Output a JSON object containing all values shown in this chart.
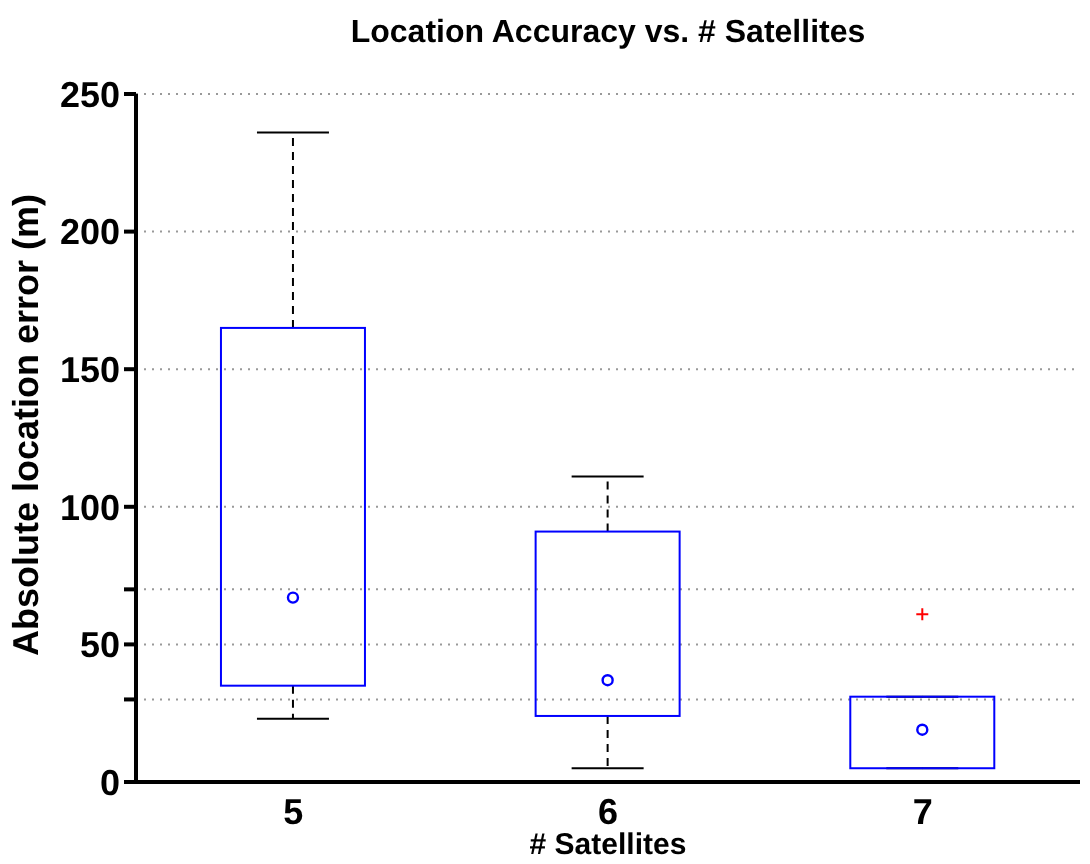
{
  "chart_data": {
    "type": "box",
    "title": "Location Accuracy vs. # Satellites",
    "xlabel": "# Satellites",
    "ylabel": "Absolute location error (m)",
    "categories": [
      "5",
      "6",
      "7"
    ],
    "color": "#0000ff",
    "boxes": [
      {
        "low": 23,
        "q1": 35,
        "median": 67,
        "q3": 165,
        "high": 236
      },
      {
        "low": 5,
        "q1": 24,
        "median": 37,
        "q3": 91,
        "high": 111
      },
      {
        "low": 5,
        "q1": 5,
        "median": 19,
        "q3": 31,
        "high": 31,
        "outliers": [
          61
        ]
      }
    ],
    "ylim": [
      0,
      250
    ],
    "yticks": [
      0,
      {
        "value": 30,
        "label": null
      },
      50,
      {
        "value": 70,
        "label": null
      },
      100,
      150,
      200,
      250
    ],
    "grid": "y"
  }
}
